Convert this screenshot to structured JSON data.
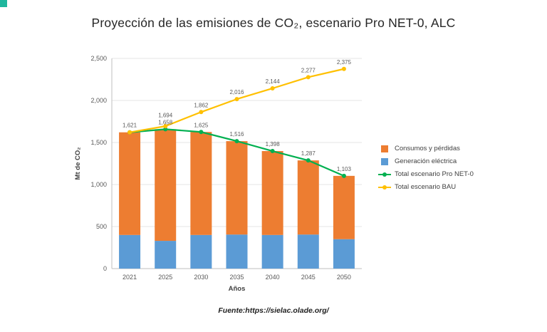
{
  "decor": {
    "corner_color": "#1fb79e"
  },
  "source": {
    "text": "Fuente:https://sielac.olade.org/"
  },
  "legend": {
    "items": [
      {
        "label": "Consumos y pérdidas",
        "color": "#ED7D31",
        "marker": "square"
      },
      {
        "label": "Generación eléctrica",
        "color": "#5B9BD5",
        "marker": "square"
      },
      {
        "label": "Total escenario Pro NET-0",
        "color": "#00B050",
        "marker": "line-dot"
      },
      {
        "label": "Total escenario BAU",
        "color": "#FFC000",
        "marker": "line-dot"
      }
    ]
  },
  "chart_data": {
    "type": "bar",
    "subtype": "stacked-bars-with-lines",
    "title": "Proyección de las emisiones de CO₂, escenario Pro NET-0, ALC",
    "xlabel": "Años",
    "ylabel": "Mt de CO₂",
    "ylim": [
      0,
      2500
    ],
    "grid": true,
    "legend_position": "right",
    "categories": [
      "2021",
      "2025",
      "2030",
      "2035",
      "2040",
      "2045",
      "2050"
    ],
    "yticks": [
      {
        "value": 0,
        "label": "0"
      },
      {
        "value": 500,
        "label": "500"
      },
      {
        "value": 1000,
        "label": "1,000"
      },
      {
        "value": 1500,
        "label": "1,500"
      },
      {
        "value": 2000,
        "label": "2,000"
      },
      {
        "value": 2500,
        "label": "2,500"
      }
    ],
    "bar_series": [
      {
        "name": "Generación eléctrica",
        "color": "#5B9BD5",
        "values": [
          400,
          330,
          400,
          405,
          400,
          405,
          350
        ]
      },
      {
        "name": "Consumos y pérdidas",
        "color": "#ED7D31",
        "values": [
          1221,
          1328,
          1225,
          1111,
          998,
          882,
          753
        ]
      }
    ],
    "line_series": [
      {
        "name": "Total escenario Pro NET-0",
        "color": "#00B050",
        "values": [
          1621,
          1658,
          1625,
          1516,
          1398,
          1287,
          1103
        ],
        "labels": [
          "1,621",
          "1,658",
          "1,625",
          "1,516",
          "1,398",
          "1,287",
          "1,103"
        ]
      },
      {
        "name": "Total escenario BAU",
        "color": "#FFC000",
        "values": [
          1621,
          1694,
          1862,
          2016,
          2144,
          2277,
          2375
        ],
        "labels": [
          "",
          "1,694",
          "1,862",
          "2,016",
          "2,144",
          "2,277",
          "2,375"
        ]
      }
    ]
  }
}
